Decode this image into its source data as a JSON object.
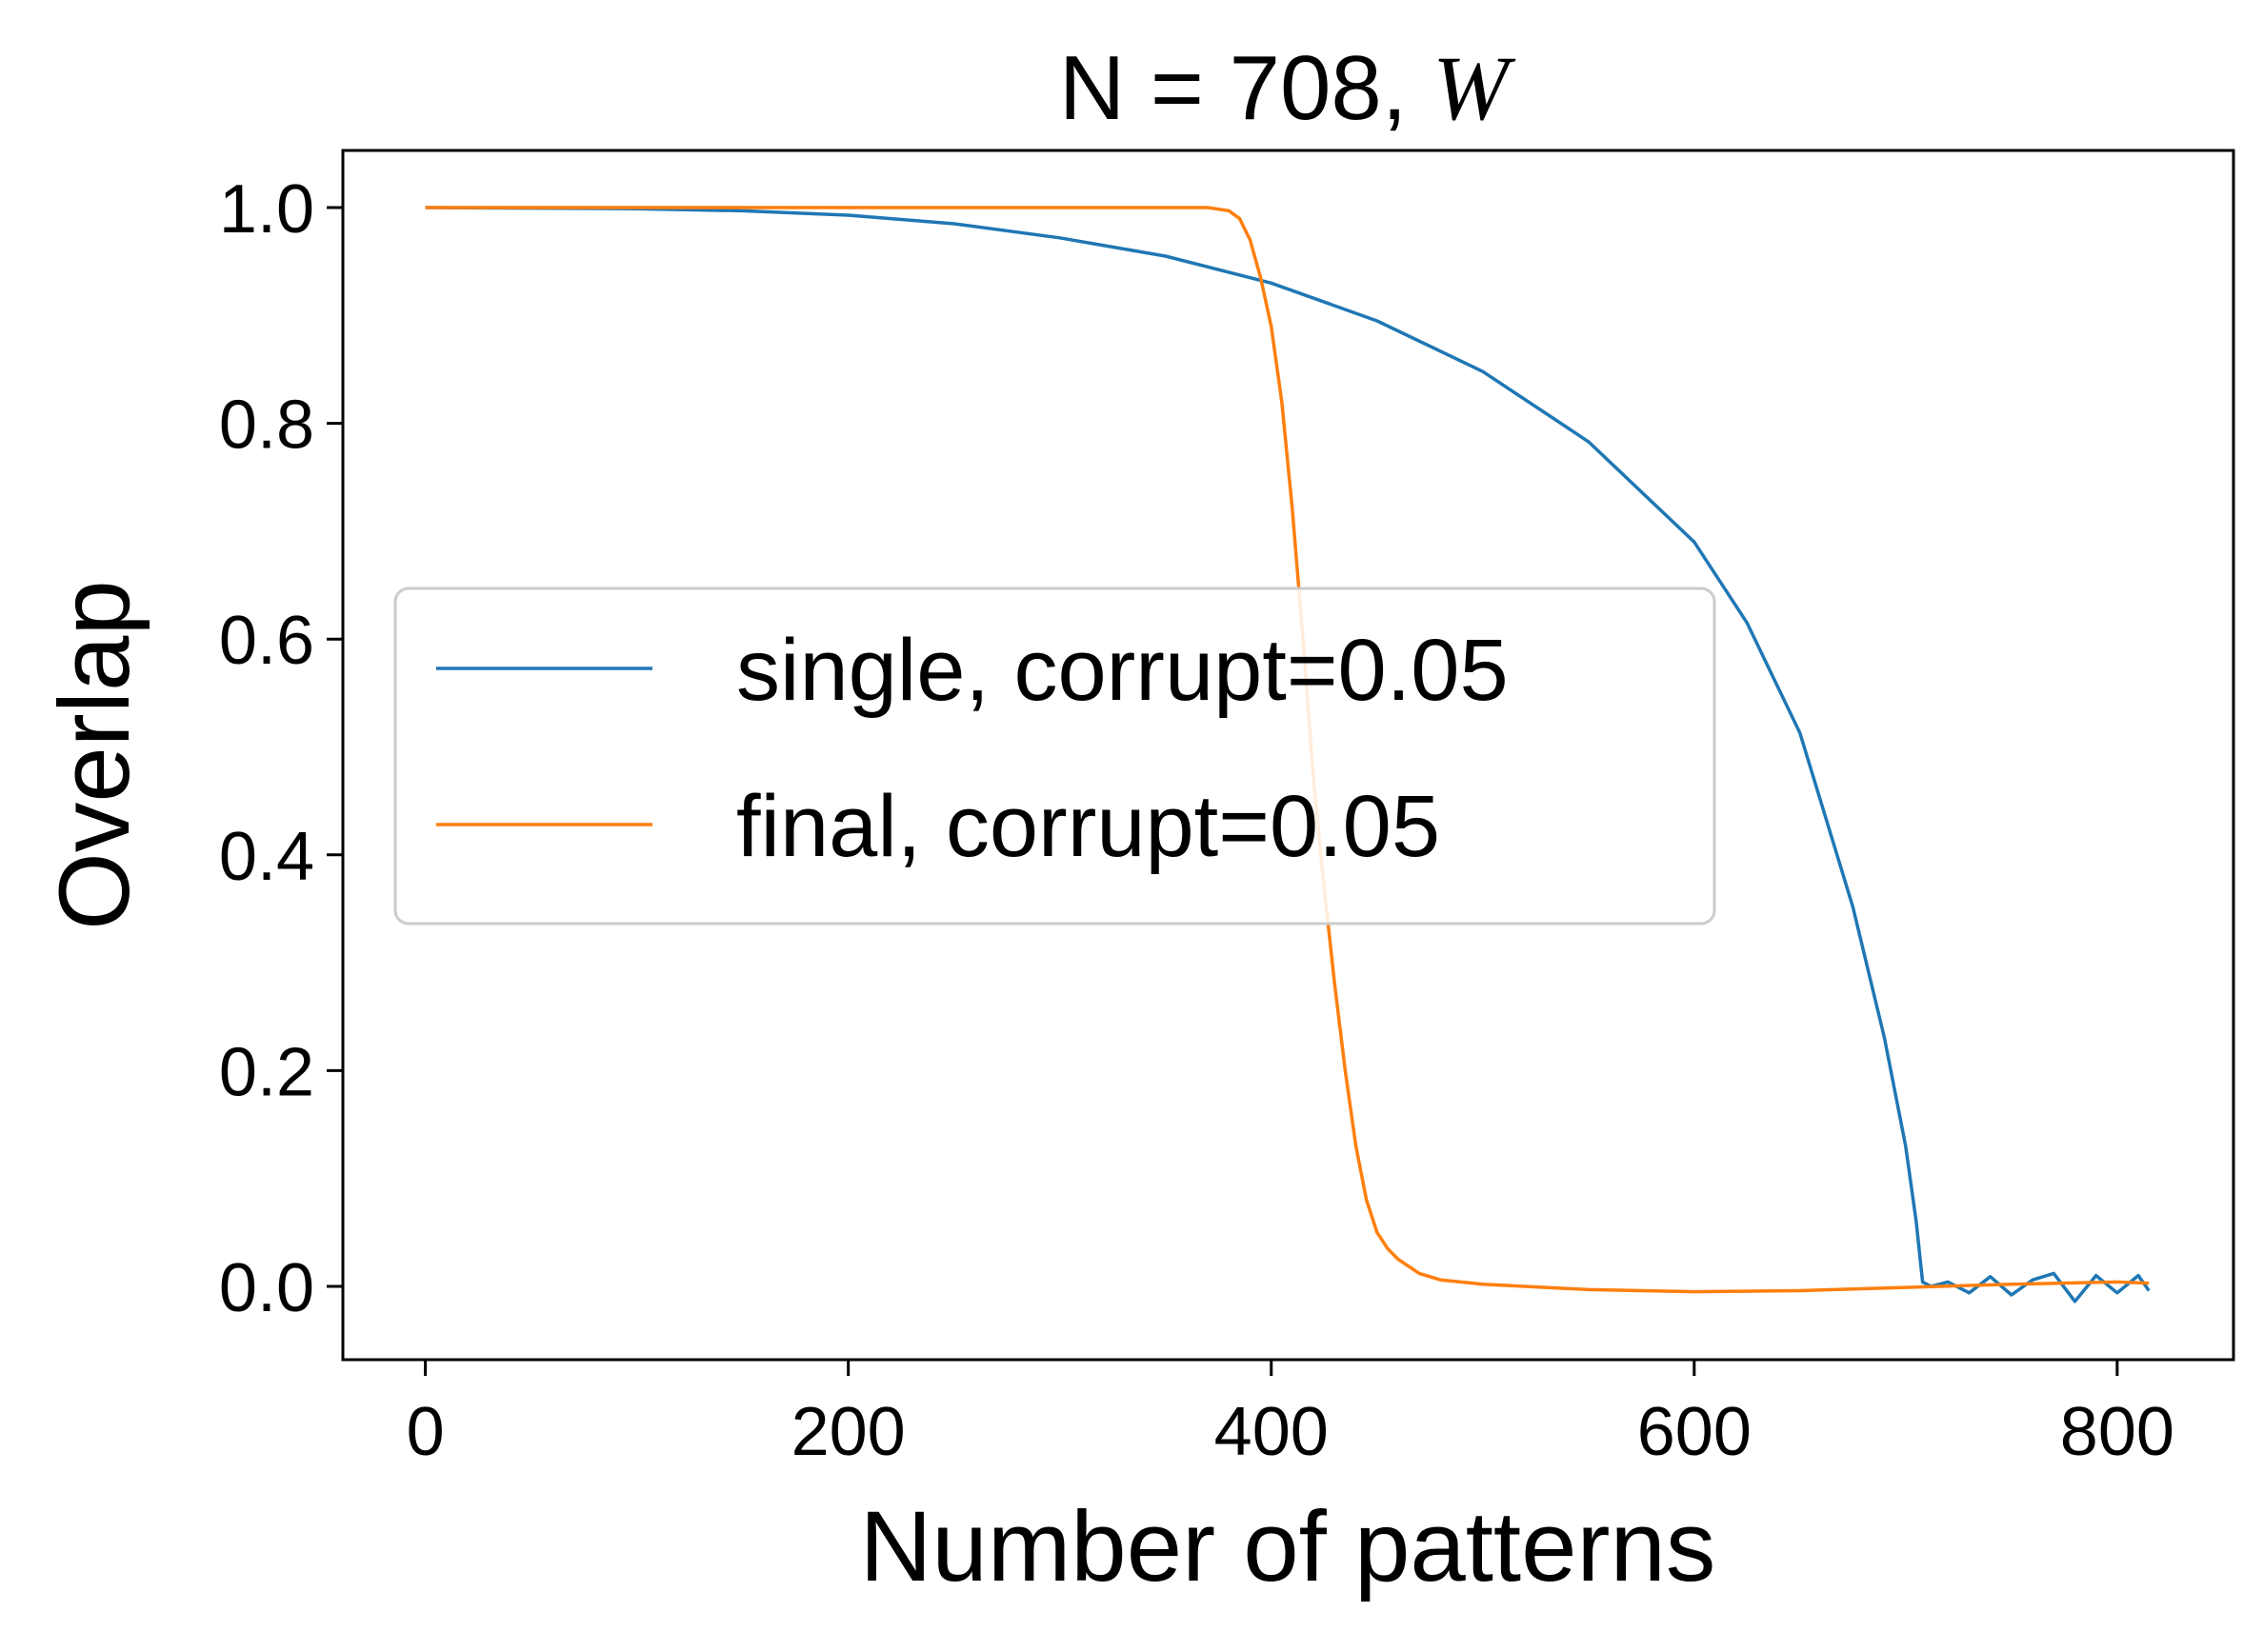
{
  "chart_data": {
    "type": "line",
    "title": {
      "text": "N = 708, ",
      "variable": "W"
    },
    "xlabel": "Number of patterns",
    "ylabel": "Overlap",
    "xlim": [
      -39,
      855
    ],
    "ylim": [
      -0.068,
      1.053
    ],
    "xticks": [
      0,
      200,
      400,
      600,
      800
    ],
    "yticks": [
      0.0,
      0.2,
      0.4,
      0.6,
      0.8,
      1.0
    ],
    "ytick_labels": [
      "0.0",
      "0.2",
      "0.4",
      "0.6",
      "0.8",
      "1.0"
    ],
    "grid": false,
    "legend_position": "center-left",
    "series": [
      {
        "name": "single, corrupt=0.05",
        "color": "#1f77b4",
        "x": [
          0,
          100,
          150,
          200,
          250,
          300,
          350,
          400,
          450,
          500,
          550,
          600,
          625,
          650,
          675,
          690,
          700,
          705,
          708,
          712,
          720,
          730,
          740,
          750,
          760,
          770,
          780,
          790,
          800,
          810,
          815
        ],
        "y": [
          1.0,
          0.999,
          0.997,
          0.993,
          0.985,
          0.972,
          0.955,
          0.93,
          0.895,
          0.848,
          0.783,
          0.69,
          0.615,
          0.513,
          0.352,
          0.23,
          0.13,
          0.06,
          0.004,
          0.0,
          0.004,
          -0.006,
          0.009,
          -0.008,
          0.006,
          0.012,
          -0.014,
          0.01,
          -0.006,
          0.01,
          -0.004
        ]
      },
      {
        "name": "final, corrupt=0.05",
        "color": "#ff7f0e",
        "x": [
          0,
          370,
          380,
          385,
          390,
          395,
          400,
          405,
          410,
          415,
          420,
          425,
          430,
          435,
          440,
          445,
          450,
          455,
          460,
          470,
          480,
          500,
          550,
          600,
          650,
          700,
          750,
          800,
          815
        ],
        "y": [
          1.0,
          1.0,
          0.997,
          0.99,
          0.97,
          0.935,
          0.89,
          0.82,
          0.72,
          0.6,
          0.47,
          0.37,
          0.28,
          0.2,
          0.13,
          0.08,
          0.05,
          0.035,
          0.025,
          0.012,
          0.006,
          0.002,
          -0.003,
          -0.005,
          -0.004,
          -0.001,
          0.002,
          0.004,
          0.003
        ]
      }
    ]
  }
}
